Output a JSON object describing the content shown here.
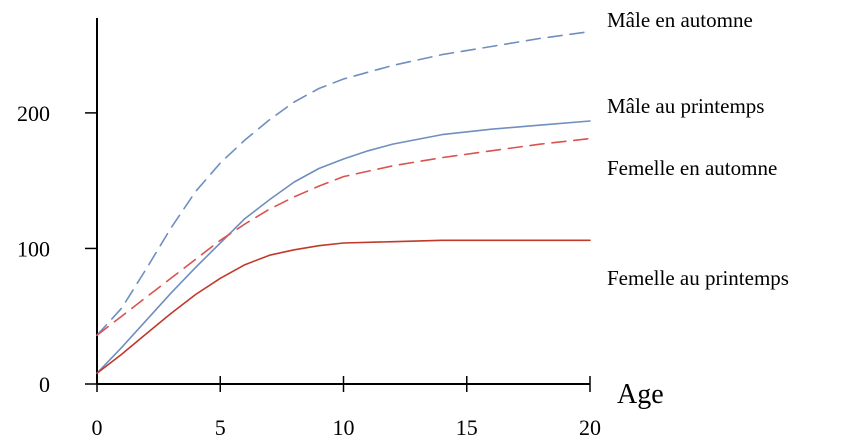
{
  "chart_data": {
    "type": "line",
    "title": "",
    "xlabel": "Age",
    "ylabel": "",
    "xlim": [
      0,
      20
    ],
    "ylim": [
      0,
      270
    ],
    "x_ticks": [
      0,
      5,
      10,
      15,
      20
    ],
    "x_tick_labels": [
      "0",
      "5",
      "10",
      "15",
      "20"
    ],
    "y_ticks": [
      0,
      100,
      200
    ],
    "y_tick_labels": [
      "0",
      "100",
      "200"
    ],
    "grid": false,
    "legend": "labels at right end of lines",
    "series": [
      {
        "name": "Mâle en automne",
        "color": "#6f8fbf",
        "style": "dashed",
        "x": [
          0,
          1,
          2,
          3,
          4,
          5,
          6,
          7,
          8,
          9,
          10,
          12,
          14,
          16,
          18,
          20
        ],
        "y": [
          36,
          56,
          85,
          115,
          142,
          163,
          180,
          195,
          208,
          218,
          225,
          235,
          243,
          249,
          255,
          260
        ]
      },
      {
        "name": "Mâle au printemps",
        "color": "#6f8fbf",
        "style": "solid",
        "x": [
          0,
          1,
          2,
          3,
          4,
          5,
          6,
          7,
          8,
          9,
          10,
          11,
          12,
          14,
          16,
          18,
          20
        ],
        "y": [
          8,
          27,
          47,
          67,
          86,
          104,
          122,
          136,
          149,
          159,
          166,
          172,
          177,
          184,
          188,
          191,
          194
        ]
      },
      {
        "name": "Femelle en automne",
        "color": "#d9534f",
        "style": "dashed",
        "x": [
          0,
          1,
          2,
          3,
          4,
          5,
          6,
          7,
          8,
          9,
          10,
          12,
          14,
          16,
          18,
          20
        ],
        "y": [
          36,
          50,
          64,
          78,
          92,
          106,
          118,
          129,
          138,
          146,
          153,
          161,
          167,
          172,
          177,
          181
        ]
      },
      {
        "name": "Femelle au printemps",
        "color": "#c0392b",
        "style": "solid",
        "x": [
          0,
          1,
          2,
          3,
          4,
          5,
          6,
          7,
          8,
          9,
          10,
          12,
          14,
          16,
          18,
          20
        ],
        "y": [
          8,
          22,
          37,
          52,
          66,
          78,
          88,
          95,
          99,
          102,
          104,
          105,
          106,
          106,
          106,
          106
        ]
      }
    ]
  }
}
